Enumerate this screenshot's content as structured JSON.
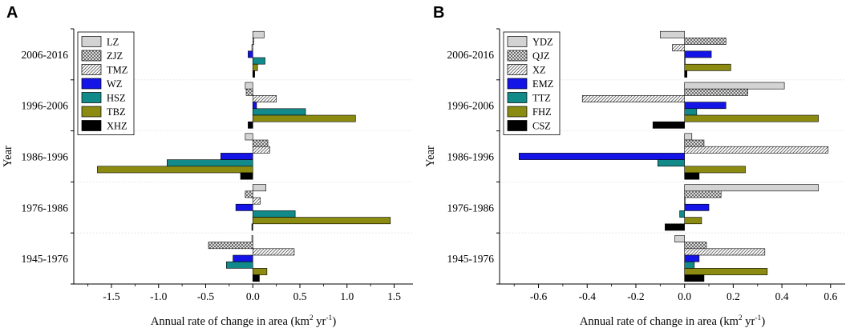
{
  "chart_data": [
    {
      "panel_label": "A",
      "type": "bar",
      "orientation": "horizontal",
      "xlabel": "Annual rate of change in area (km",
      "xlabel_sup": "2",
      "xlabel_unit": " yr",
      "xlabel_sup2": "-1",
      "xlabel_end": ")",
      "ylabel": "Year",
      "xlim": [
        -1.9,
        1.7
      ],
      "xticks": [
        -1.5,
        -1.0,
        -0.5,
        0.0,
        0.5,
        1.0,
        1.5
      ],
      "xtick_labels": [
        "-1.5",
        "-1.0",
        "-0.5",
        "0.0",
        "0.5",
        "1.0",
        "1.5"
      ],
      "legend_position": "top-left",
      "categories": [
        "2006-2016",
        "1996-2006",
        "1986-1996",
        "1976-1986",
        "1945-1976"
      ],
      "series": [
        {
          "name": "LZ",
          "fill": "#d3d3d3",
          "pattern": "solid",
          "values": [
            0.12,
            -0.08,
            -0.08,
            0.14,
            -0.01
          ]
        },
        {
          "name": "ZJZ",
          "fill": "#b0b0b0",
          "pattern": "crosshatch",
          "values": [
            0.01,
            -0.07,
            0.16,
            -0.08,
            -0.47
          ]
        },
        {
          "name": "TMZ",
          "fill": "#ffffff",
          "pattern": "diagonal",
          "values": [
            -0.01,
            0.25,
            0.18,
            0.08,
            0.44
          ]
        },
        {
          "name": "WZ",
          "fill": "#1414e6",
          "pattern": "solid",
          "values": [
            -0.05,
            0.04,
            -0.34,
            -0.18,
            -0.21
          ]
        },
        {
          "name": "HSZ",
          "fill": "#138a8a",
          "pattern": "solid",
          "values": [
            0.13,
            0.56,
            -0.91,
            0.45,
            -0.28
          ]
        },
        {
          "name": "TBZ",
          "fill": "#8b8b12",
          "pattern": "solid",
          "values": [
            0.05,
            1.09,
            -1.65,
            1.46,
            0.15
          ]
        },
        {
          "name": "XHZ",
          "fill": "#000000",
          "pattern": "solid",
          "values": [
            0.02,
            -0.05,
            -0.13,
            -0.01,
            0.07
          ]
        }
      ]
    },
    {
      "panel_label": "B",
      "type": "bar",
      "orientation": "horizontal",
      "xlabel": "Annual rate of change in area (km",
      "xlabel_sup": "2",
      "xlabel_unit": " yr",
      "xlabel_sup2": "-1",
      "xlabel_end": ")",
      "ylabel": "Year",
      "xlim": [
        -0.76,
        0.66
      ],
      "xticks": [
        -0.6,
        -0.4,
        -0.2,
        0.0,
        0.2,
        0.4,
        0.6
      ],
      "xtick_labels": [
        "-0.6",
        "-0.4",
        "-0.2",
        "0.0",
        "0.2",
        "0.4",
        "0.6"
      ],
      "legend_position": "top-left",
      "categories": [
        "2006-2016",
        "1996-2006",
        "1986-1996",
        "1976-1986",
        "1945-1976"
      ],
      "series": [
        {
          "name": "YDZ",
          "fill": "#d3d3d3",
          "pattern": "solid",
          "values": [
            -0.1,
            0.41,
            0.03,
            0.55,
            -0.04
          ]
        },
        {
          "name": "QJZ",
          "fill": "#b0b0b0",
          "pattern": "crosshatch",
          "values": [
            0.17,
            0.26,
            0.08,
            0.15,
            0.09
          ]
        },
        {
          "name": "XZ",
          "fill": "#ffffff",
          "pattern": "diagonal",
          "values": [
            -0.05,
            -0.42,
            0.59,
            0.0,
            0.33
          ]
        },
        {
          "name": "EMZ",
          "fill": "#1414e6",
          "pattern": "solid",
          "values": [
            0.11,
            0.17,
            -0.68,
            0.1,
            0.06
          ]
        },
        {
          "name": "TTZ",
          "fill": "#138a8a",
          "pattern": "solid",
          "values": [
            0.0,
            0.05,
            -0.11,
            -0.02,
            0.04
          ]
        },
        {
          "name": "FHZ",
          "fill": "#8b8b12",
          "pattern": "solid",
          "values": [
            0.19,
            0.55,
            0.25,
            0.07,
            0.34
          ]
        },
        {
          "name": "CSZ",
          "fill": "#000000",
          "pattern": "solid",
          "values": [
            0.01,
            -0.13,
            0.06,
            -0.08,
            0.08
          ]
        }
      ]
    }
  ]
}
